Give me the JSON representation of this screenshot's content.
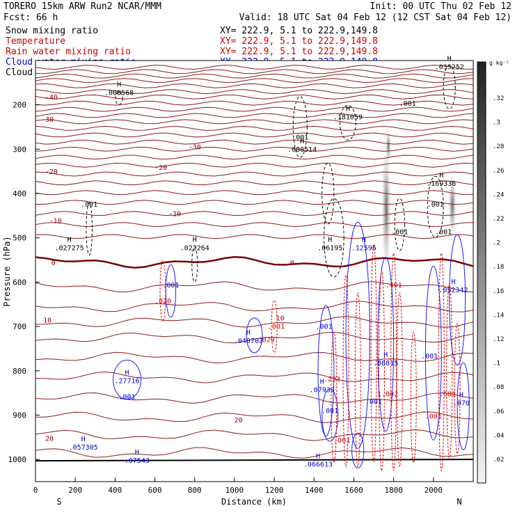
{
  "header": {
    "line1_left": "TORERO  15km ARW   Run2    NCAR/MMM",
    "line1_right": "Init: 00 UTC Thu 02 Feb 12",
    "line2_left": "Fcst:    66 h",
    "line2_right": "Valid: 18 UTC Sat 04 Feb 12 (12 CST Sat 04 Feb 12)"
  },
  "legend": {
    "section": "XY= 222.9,  5.1 to 222.9,149.8",
    "entries": [
      {
        "label": "Snow mixing ratio",
        "color": "#000000"
      },
      {
        "label": "Temperature",
        "color": "#cc0000"
      },
      {
        "label": "Rain water mixing ratio",
        "color": "#cc0000"
      },
      {
        "label": "Cloud water mixing ratio",
        "color": "#0000cc"
      },
      {
        "label": "Cloud ice mixing ratio",
        "color": "#000000"
      }
    ]
  },
  "chart_data": {
    "type": "cross-section",
    "xlabel": "Distance (km)",
    "ylabel": "Pressure (hPa)",
    "xlim": [
      0,
      2200
    ],
    "ylim": [
      1050,
      100
    ],
    "x_ticks": [
      0,
      200,
      400,
      600,
      800,
      1000,
      1200,
      1400,
      1600,
      1800,
      2000
    ],
    "y_ticks": [
      200,
      300,
      400,
      500,
      600,
      700,
      800,
      900,
      1000
    ],
    "x_end_labels": [
      "S",
      "N"
    ],
    "temperature_levels": [
      {
        "label": "-40",
        "x": 80,
        "p": 182
      },
      {
        "label": "-30",
        "x": 60,
        "p": 232
      },
      {
        "label": "-30",
        "x": 800,
        "p": 294
      },
      {
        "label": "-20",
        "x": 80,
        "p": 350
      },
      {
        "label": "-20",
        "x": 630,
        "p": 340
      },
      {
        "label": "-10",
        "x": 100,
        "p": 460
      },
      {
        "label": "-10",
        "x": 700,
        "p": 445
      },
      {
        "label": "0",
        "x": 90,
        "p": 555
      },
      {
        "label": "0",
        "x": 1290,
        "p": 555
      },
      {
        "label": "10",
        "x": 60,
        "p": 685
      },
      {
        "label": "10",
        "x": 1230,
        "p": 680
      },
      {
        "label": "20",
        "x": 70,
        "p": 952
      },
      {
        "label": "20",
        "x": 1020,
        "p": 910
      }
    ],
    "extrema": [
      {
        "label": "H",
        "value": ".008568",
        "x": 420,
        "p": 170,
        "field": "snow"
      },
      {
        "label": "H",
        "value": ".033252",
        "x": 2080,
        "p": 112,
        "field": "snow"
      },
      {
        "label": "H",
        "value": ".181059",
        "x": 1570,
        "p": 225,
        "field": "snow"
      },
      {
        "label": "H",
        "value": ".080514",
        "x": 1340,
        "p": 298,
        "field": "snow"
      },
      {
        "label": "H",
        "value": ".169336",
        "x": 2040,
        "p": 375,
        "field": "snow"
      },
      {
        "label": "H",
        "value": ".027275",
        "x": 170,
        "p": 520,
        "field": "snow"
      },
      {
        "label": "H",
        "value": ".022264",
        "x": 800,
        "p": 520,
        "field": "snow"
      },
      {
        "label": "H",
        "value": ".06195",
        "x": 1480,
        "p": 520,
        "field": "cloud_ice"
      },
      {
        "label": "H",
        "value": ".12596",
        "x": 1650,
        "p": 520,
        "field": "cloud_water"
      },
      {
        "label": "H",
        "value": ".052342",
        "x": 2100,
        "p": 615,
        "field": "cloud_water"
      },
      {
        "label": "H",
        "value": ".040703",
        "x": 1070,
        "p": 730,
        "field": "cloud_water"
      },
      {
        "label": "H",
        "value": ".08815",
        "x": 1760,
        "p": 780,
        "field": "cloud_water"
      },
      {
        "label": "H",
        "value": ".27716",
        "x": 460,
        "p": 820,
        "field": "cloud_water"
      },
      {
        "label": "H",
        "value": ".07939",
        "x": 1440,
        "p": 840,
        "field": "cloud_water"
      },
      {
        "label": "H",
        "value": ".057305",
        "x": 240,
        "p": 970,
        "field": "cloud_water"
      },
      {
        "label": "H",
        "value": ".07543",
        "x": 510,
        "p": 1000,
        "field": "cloud_water"
      },
      {
        "label": "H",
        "value": ".066613",
        "x": 1420,
        "p": 1008,
        "field": "cloud_water"
      },
      {
        "label": "H",
        "value": ".070",
        "x": 2140,
        "p": 870,
        "field": "cloud_water"
      }
    ],
    "contour_labels": [
      {
        "value": ".001",
        "x": 270,
        "p": 430,
        "color": "#000000"
      },
      {
        "value": ".001",
        "x": 1330,
        "p": 278,
        "color": "#000000"
      },
      {
        "value": ".001",
        "x": 1870,
        "p": 202,
        "color": "#000000"
      },
      {
        "value": ".001",
        "x": 1830,
        "p": 492,
        "color": "#000000"
      },
      {
        "value": ".001",
        "x": 2010,
        "p": 430,
        "color": "#000000"
      },
      {
        "value": ".001",
        "x": 680,
        "p": 612,
        "color": "#0000cc"
      },
      {
        "value": ".001",
        "x": 1450,
        "p": 705,
        "color": "#0000cc"
      },
      {
        "value": ".001",
        "x": 1480,
        "p": 895,
        "color": "#0000cc"
      },
      {
        "value": ".001",
        "x": 1700,
        "p": 875,
        "color": "#0000cc"
      },
      {
        "value": ".001",
        "x": 1980,
        "p": 772,
        "color": "#0000cc"
      },
      {
        "value": ".001",
        "x": 460,
        "p": 864,
        "color": "#0000cc"
      },
      {
        "value": ".001",
        "x": 1210,
        "p": 705,
        "color": "#cc0000"
      },
      {
        "value": ".001",
        "x": 1540,
        "p": 962,
        "color": "#cc0000"
      },
      {
        "value": ".001",
        "x": 2000,
        "p": 908,
        "color": "#cc0000"
      },
      {
        "value": ".020",
        "x": 640,
        "p": 648,
        "color": "#cc0000"
      },
      {
        "value": ".401",
        "x": 1800,
        "p": 612,
        "color": "#cc0000"
      },
      {
        "value": ".029",
        "x": 1160,
        "p": 735,
        "color": "#cc0000"
      },
      {
        "value": ".233",
        "x": 1490,
        "p": 824,
        "color": "#cc0000"
      },
      {
        "value": "1.002",
        "x": 1770,
        "p": 858,
        "color": "#cc0000"
      },
      {
        "value": ".681",
        "x": 2070,
        "p": 858,
        "color": "#cc0000"
      },
      {
        "value": ".001",
        "x": 2050,
        "p": 492,
        "color": "#000000"
      }
    ]
  },
  "colorbar": {
    "unit": "g kg⁻¹",
    "labels": [
      ".32",
      ".3",
      ".28",
      ".26",
      ".24",
      ".22",
      ".2",
      ".18",
      ".16",
      ".14",
      ".12",
      ".1",
      ".08",
      ".06",
      ".04",
      ".02"
    ]
  }
}
